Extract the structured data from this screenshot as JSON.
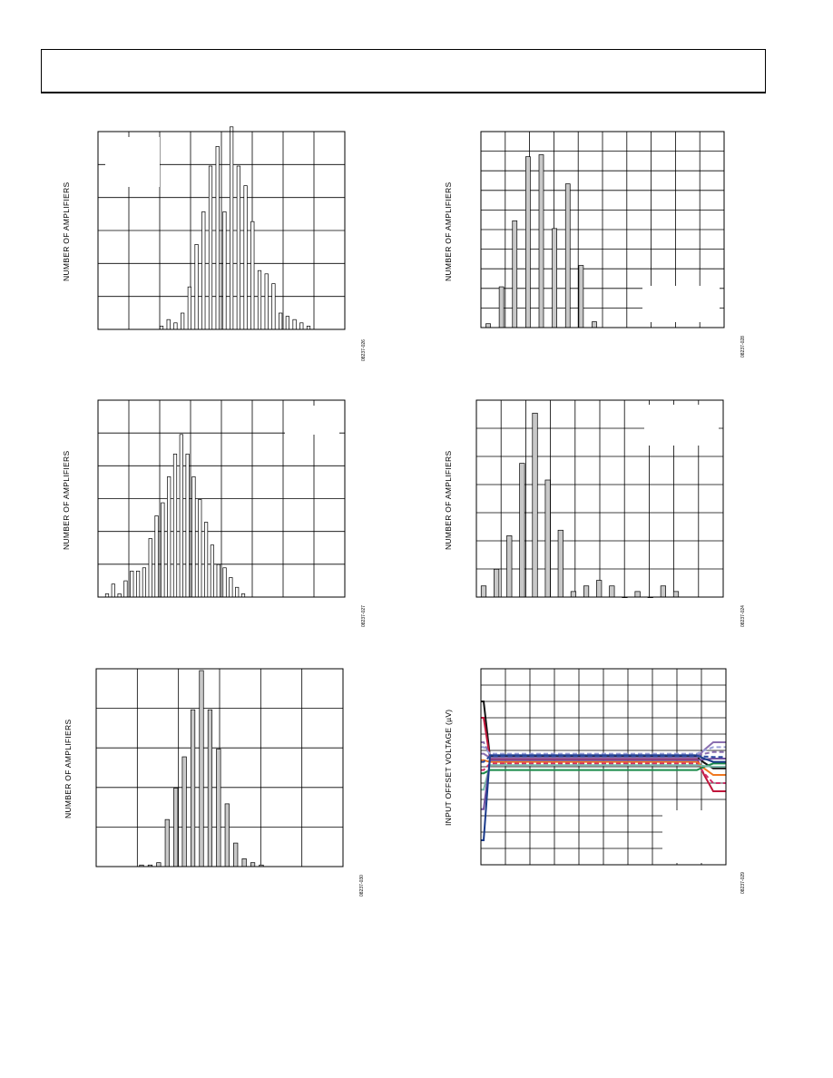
{
  "header": {
    "text": ""
  },
  "chart_data": [
    {
      "id": "c1",
      "type": "bar",
      "ylabel": "NUMBER OF AMPLIFIERS",
      "figure_code": "08237-026",
      "bar_color": "#ffffff",
      "values": [
        1,
        3,
        2,
        5,
        13,
        26,
        36,
        50,
        56,
        36,
        62,
        50,
        44,
        33,
        18,
        17,
        14,
        5,
        4,
        3,
        2,
        1
      ],
      "ylim": [
        0,
        60
      ],
      "ydivs": 6,
      "xdivs": 8
    },
    {
      "id": "c2",
      "type": "bar",
      "ylabel": "NUMBER OF AMPLIFIERS",
      "figure_code": "08237-028",
      "bar_color": "#c8c8c8",
      "values": [
        2,
        21,
        55,
        88,
        89,
        51,
        74,
        32,
        3
      ],
      "ylim": [
        0,
        100
      ],
      "ydivs": 10,
      "xdivs": 10
    },
    {
      "id": "c3",
      "type": "bar",
      "ylabel": "NUMBER OF AMPLIFIERS",
      "figure_code": "08237-027",
      "bar_color": "#ffffff",
      "values": [
        1,
        4,
        1,
        5,
        8,
        8,
        9,
        18,
        25,
        29,
        37,
        44,
        50,
        44,
        37,
        30,
        23,
        16,
        10,
        9,
        6,
        3,
        1
      ],
      "ylim": [
        0,
        60
      ],
      "ydivs": 6,
      "xdivs": 8
    },
    {
      "id": "c4",
      "type": "bar",
      "ylabel": "NUMBER OF AMPLIFIERS",
      "figure_code": "08237-024",
      "bar_color": "#c8c8c8",
      "values": [
        4,
        10,
        22,
        48,
        66,
        42,
        24,
        2,
        4,
        6,
        4,
        0,
        2,
        0,
        4,
        2
      ],
      "ylim": [
        0,
        70
      ],
      "ydivs": 7,
      "xdivs": 10
    },
    {
      "id": "c5",
      "type": "bar",
      "ylabel": "NUMBER OF AMPLIFIERS",
      "figure_code": "08237-030",
      "bar_color": "#c8c8c8",
      "values": [
        0.2,
        0.2,
        0.5,
        6,
        10,
        14,
        20,
        25,
        20,
        15,
        8,
        3,
        1,
        0.5,
        0.2
      ],
      "ylim": [
        0,
        25
      ],
      "ydivs": 5,
      "xdivs": 6
    },
    {
      "id": "c6",
      "type": "line",
      "ylabel": "INPUT OFFSET VOLTAGE (µV)",
      "figure_code": "08237-029",
      "ylim": [
        -6,
        6
      ],
      "ydivs": 12,
      "xdivs": 10,
      "xlim": [
        0,
        10
      ],
      "series": [
        {
          "color": "#111111",
          "dash": false,
          "start": 4.0,
          "mid": 0.6,
          "end": -0.1
        },
        {
          "color": "#c0163b",
          "dash": false,
          "start": 3.0,
          "mid": 0.5,
          "end": -1.5
        },
        {
          "color": "#8a6fb0",
          "dash": true,
          "start": 1.5,
          "mid": 0.7,
          "end": 0.9
        },
        {
          "color": "#8a6fb0",
          "dash": false,
          "start": 0.8,
          "mid": 0.55,
          "end": 1.5
        },
        {
          "color": "#9aa0d8",
          "dash": true,
          "start": 1.2,
          "mid": 0.8,
          "end": 1.2
        },
        {
          "color": "#f07820",
          "dash": false,
          "start": 0.4,
          "mid": 0.3,
          "end": -0.5
        },
        {
          "color": "#d0306a",
          "dash": true,
          "start": -0.2,
          "mid": 0.2,
          "end": -1.0
        },
        {
          "color": "#1a8a4a",
          "dash": false,
          "start": -0.4,
          "mid": -0.2,
          "end": 0.2
        },
        {
          "color": "#7ab8a8",
          "dash": false,
          "start": -1.4,
          "mid": 0.1,
          "end": 0.0
        },
        {
          "color": "#7050a0",
          "dash": false,
          "start": -2.6,
          "mid": 0.4,
          "end": 0.5
        },
        {
          "color": "#1a3a8a",
          "dash": false,
          "start": -4.5,
          "mid": 0.7,
          "end": 0.3
        },
        {
          "color": "#2a4aa0",
          "dash": true,
          "start": 0.3,
          "mid": 0.65,
          "end": 0.6
        }
      ]
    }
  ]
}
